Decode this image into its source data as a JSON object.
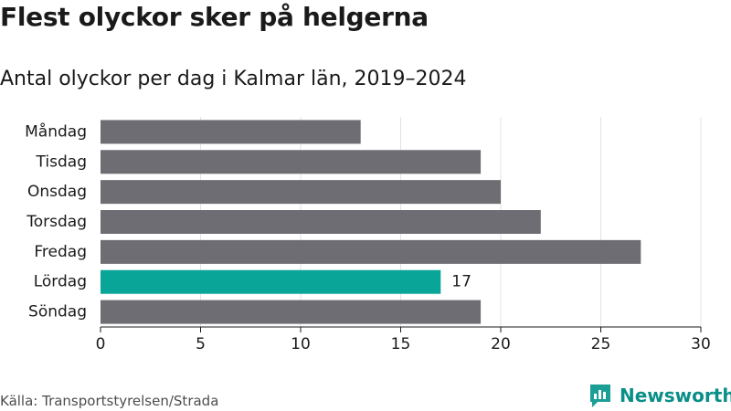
{
  "title": "Flest olyckor sker på helgerna",
  "subtitle": "Antal olyckor per dag i Kalmar län, 2019–2024",
  "source": "Källa: Transportstyrelsen/Strada",
  "brand": {
    "name": "Newsworthy",
    "icon": "newsworthy-logo-icon",
    "color": "#1a9e96"
  },
  "colors": {
    "bar": "#6e6d73",
    "highlight": "#08a598",
    "grid": "#e3e3e3",
    "axis": "#1a1a1a"
  },
  "chart_data": {
    "type": "bar",
    "orientation": "horizontal",
    "categories": [
      "Måndag",
      "Tisdag",
      "Onsdag",
      "Torsdag",
      "Fredag",
      "Lördag",
      "Söndag"
    ],
    "values": [
      13,
      19,
      20,
      22,
      27,
      17,
      19
    ],
    "highlight_index": 5,
    "data_labels": [
      {
        "category": "Lördag",
        "text": "17"
      }
    ],
    "xlim": [
      0,
      30
    ],
    "x_ticks": [
      0,
      5,
      10,
      15,
      20,
      25,
      30
    ],
    "grid": true,
    "xlabel": "",
    "ylabel": ""
  }
}
